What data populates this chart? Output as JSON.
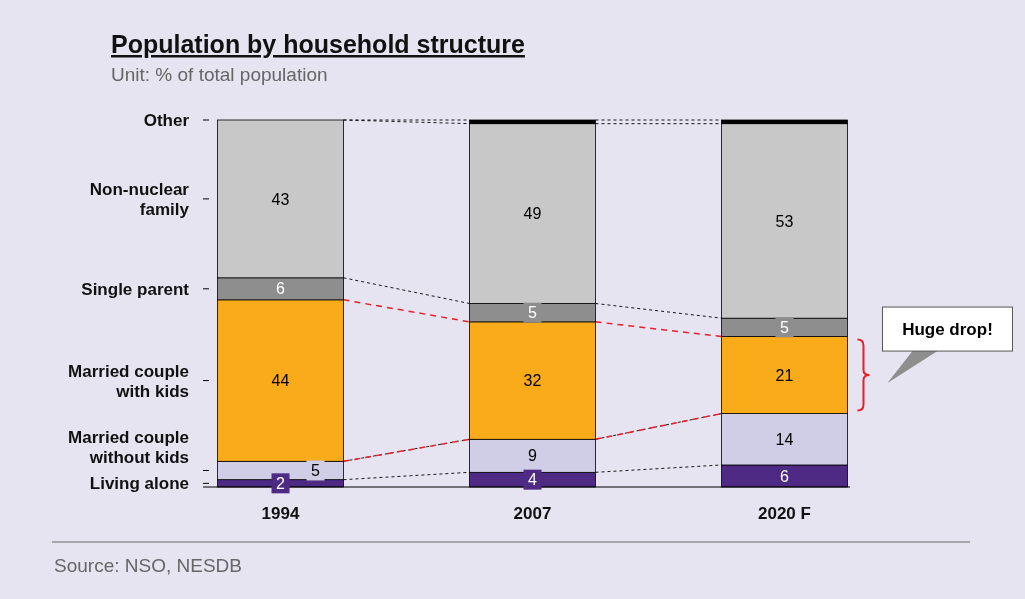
{
  "chart_data": {
    "type": "bar",
    "stacked": true,
    "title": "Population by household structure",
    "subtitle": "Unit: % of total population",
    "categories": [
      "1994",
      "2007",
      "2020 F"
    ],
    "series": [
      {
        "name": "Living alone",
        "color": "#4e2a84",
        "values": [
          2,
          4,
          6
        ],
        "value_labels": [
          "2",
          "4",
          "6"
        ]
      },
      {
        "name": "Married couple without kids",
        "color": "#d0cde6",
        "values": [
          5,
          9,
          14
        ],
        "value_labels": [
          "5",
          "9",
          "14"
        ]
      },
      {
        "name": "Married couple with kids",
        "color": "#f9ab1a",
        "values": [
          44,
          32,
          21
        ],
        "value_labels": [
          "44",
          "32",
          "21"
        ]
      },
      {
        "name": "Single parent",
        "color": "#8e8e8e",
        "values": [
          6,
          5,
          5
        ],
        "value_labels": [
          "6",
          "5",
          "5"
        ]
      },
      {
        "name": "Non-nuclear family",
        "color": "#c8c8c8",
        "values": [
          43,
          49,
          53
        ],
        "value_labels": [
          "43",
          "49",
          "53"
        ]
      },
      {
        "name": "Other",
        "color": "#000000",
        "values": [
          0,
          1,
          1
        ],
        "value_labels": [
          null,
          null,
          null
        ]
      }
    ],
    "annotations": [
      "Huge drop!",
      "Source: NSO, NESDB"
    ],
    "legend": "left"
  }
}
